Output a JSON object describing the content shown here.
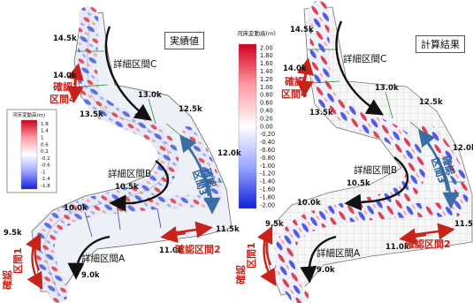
{
  "panels": {
    "left_title": "実績値",
    "right_title": "計算結果"
  },
  "sections": {
    "detail_a": "詳細区間A",
    "detail_b": "詳細区間B",
    "detail_c": "詳細区間C",
    "confirm_1_line1": "確認",
    "confirm_1_line2": "区間1",
    "confirm_2": "確認区間2",
    "confirm_3_line1": "確認",
    "confirm_3_line2": "区間3",
    "confirm_4_line1": "確認",
    "confirm_4_line2": "区間4"
  },
  "km_labels": [
    "14.5k",
    "14.0k",
    "13.5k",
    "13.0k",
    "12.5k",
    "12.0k",
    "11.5k",
    "11.0k",
    "10.5k",
    "10.0k",
    "9.5k",
    "9.0k"
  ],
  "legend_small": {
    "title": "河床変動高(m)",
    "ticks": [
      "1.8",
      "1.4",
      "1",
      "0.6",
      "0.2",
      "-0.2",
      "-0.6",
      "-1",
      "-1.4",
      "-1.8"
    ]
  },
  "legend_large": {
    "title": "河床変動高(m)",
    "ticks": [
      "2.00",
      "1.80",
      "1.60",
      "1.40",
      "1.20",
      "1.00",
      "0.80",
      "0.60",
      "0.40",
      "0.20",
      "0.00",
      "-0.20",
      "-0.40",
      "-0.60",
      "-0.80",
      "-1.00",
      "-1.20",
      "-1.40",
      "-1.60",
      "-1.80",
      "-2.00"
    ]
  },
  "colors": {
    "red_arrow": "#c8231a",
    "blue_arrow": "#3b6ea5",
    "black_arrow": "#111111",
    "scale_high": "#e0102a",
    "scale_mid": "#ffffff",
    "scale_low": "#1830e0"
  }
}
